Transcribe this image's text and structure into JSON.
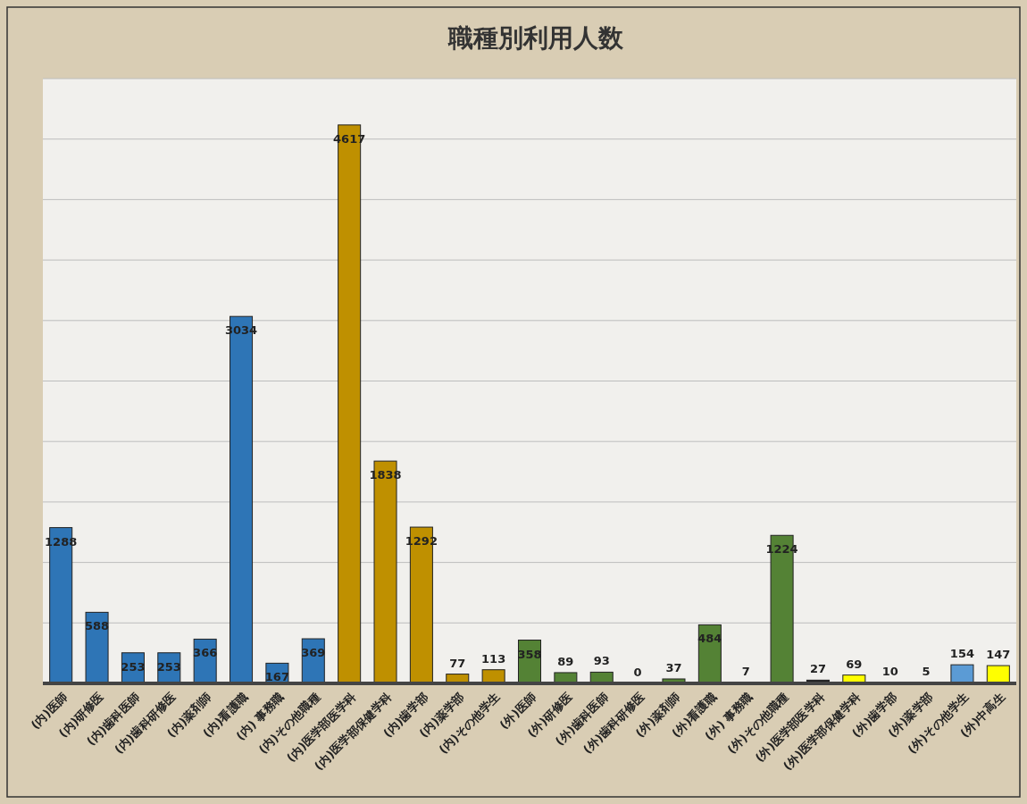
{
  "chart_data": {
    "type": "bar",
    "title": "職種別利用人数",
    "categories": [
      "(内)医師",
      "(内)研修医",
      "(内)歯科医師",
      "(内)歯科研修医",
      "(内)薬剤師",
      "(内)看護職",
      "(内) 事務職",
      "(内)その他職種",
      "(内)医学部医学科",
      "(内)医学部保健学科",
      "(内)歯学部",
      "(内)薬学部",
      "(内)その他学生",
      "(外)医師",
      "(外)研修医",
      "(外)歯科医師",
      "(外)歯科研修医",
      "(外)薬剤師",
      "(外)看護職",
      "(外) 事務職",
      "(外)その他職種",
      "(外)医学部医学科",
      "(外)医学部保健学科",
      "(外)歯学部",
      "(外)薬学部",
      "(外)その他学生",
      "(外)中高生"
    ],
    "values": [
      1288,
      588,
      253,
      253,
      366,
      3034,
      167,
      369,
      4617,
      1838,
      1292,
      77,
      113,
      358,
      89,
      93,
      0,
      37,
      484,
      7,
      1224,
      27,
      69,
      10,
      5,
      154,
      147
    ],
    "colors": [
      "#2e75b6",
      "#2e75b6",
      "#2e75b6",
      "#2e75b6",
      "#2e75b6",
      "#2e75b6",
      "#2e75b6",
      "#2e75b6",
      "#bf9000",
      "#bf9000",
      "#bf9000",
      "#bf9000",
      "#bf9000",
      "#548235",
      "#548235",
      "#548235",
      "#548235",
      "#548235",
      "#548235",
      "#548235",
      "#548235",
      "#1f1f1f",
      "#ffff00",
      "#ffff00",
      "#ffff00",
      "#5b9bd5",
      "#ffff00"
    ],
    "ylim": [
      0,
      5000
    ],
    "yticks": [
      {
        "value": 0,
        "label": null
      },
      {
        "value": 500,
        "label": null
      },
      {
        "value": 1000,
        "label": null
      },
      {
        "value": 1500,
        "label": null
      },
      {
        "value": 2000,
        "label": null
      },
      {
        "value": 2500,
        "label": null
      },
      {
        "value": 3000,
        "label": null
      },
      {
        "value": 3500,
        "label": null
      },
      {
        "value": 4000,
        "label": null
      },
      {
        "value": 4500,
        "label": null
      },
      {
        "value": 5000,
        "label": null
      }
    ],
    "grid": "y",
    "data_labels": true,
    "tick_labels": "x"
  }
}
